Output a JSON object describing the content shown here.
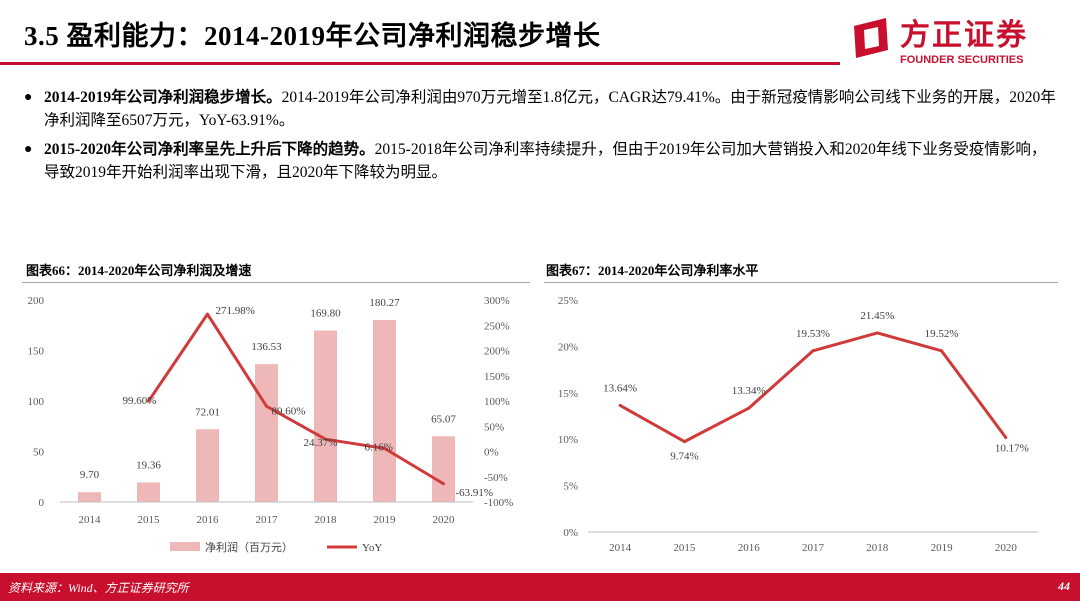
{
  "header": {
    "title": "3.5 盈利能力：2014-2019年公司净利润稳步增长"
  },
  "logo": {
    "name": "方正证券",
    "sub": "FOUNDER SECURITIES"
  },
  "bullets": [
    {
      "bold": "2014-2019年公司净利润稳步增长。",
      "text": "2014-2019年公司净利润由970万元增至1.8亿元，CAGR达79.41%。由于新冠疫情影响公司线下业务的开展，2020年净利润降至6507万元，YoY-63.91%。"
    },
    {
      "bold": "2015-2020年公司净利率呈先上升后下降的趋势。",
      "text": "2015-2018年公司净利率持续提升，但由于2019年公司加大营销投入和2020年线下业务受疫情影响，导致2019年开始利润率出现下滑，且2020年下降较为明显。"
    }
  ],
  "colors": {
    "brand": "#c8102e",
    "bar": "#efb8b8",
    "line": "#d03a3a"
  },
  "chart_data": [
    {
      "type": "bar+line",
      "title": "图表66：2014-2020年公司净利润及增速",
      "categories": [
        "2014",
        "2015",
        "2016",
        "2017",
        "2018",
        "2019",
        "2020"
      ],
      "series": [
        {
          "name": "净利润（百万元）",
          "type": "bar",
          "axis": "left",
          "values": [
            9.7,
            19.36,
            72.01,
            136.53,
            169.8,
            180.27,
            65.07
          ],
          "labels": [
            "9.70",
            "19.36",
            "72.01",
            "136.53",
            "169.80",
            "180.27",
            "65.07"
          ]
        },
        {
          "name": "YoY",
          "type": "line",
          "axis": "right",
          "values": [
            null,
            99.6,
            271.98,
            89.6,
            24.37,
            6.16,
            -63.91
          ],
          "labels": [
            "",
            "99.60%",
            "271.98%",
            "89.60%",
            "24.37%",
            "6.16%",
            "-63.91%"
          ]
        }
      ],
      "ylim_left": [
        0,
        200
      ],
      "yticks_left": [
        "0",
        "50",
        "100",
        "150",
        "200"
      ],
      "ylim_right": [
        -100,
        300
      ],
      "yticks_right": [
        "-100%",
        "-50%",
        "0%",
        "50%",
        "100%",
        "150%",
        "200%",
        "250%",
        "300%"
      ],
      "legend": [
        "净利润（百万元）",
        "YoY"
      ],
      "legend_position": "bottom",
      "grid": false
    },
    {
      "type": "line",
      "title": "图表67：2014-2020年公司净利率水平",
      "categories": [
        "2014",
        "2015",
        "2016",
        "2017",
        "2018",
        "2019",
        "2020"
      ],
      "series": [
        {
          "values": [
            13.64,
            9.74,
            13.34,
            19.53,
            21.45,
            19.52,
            10.17
          ],
          "labels": [
            "13.64%",
            "9.74%",
            "13.34%",
            "19.53%",
            "21.45%",
            "19.52%",
            "10.17%"
          ]
        }
      ],
      "ylim": [
        0,
        25
      ],
      "yticks": [
        "0%",
        "5%",
        "10%",
        "15%",
        "20%",
        "25%"
      ],
      "grid": false
    }
  ],
  "footer": {
    "source": "资料来源：Wind、方正证券研究所",
    "page": "44"
  }
}
